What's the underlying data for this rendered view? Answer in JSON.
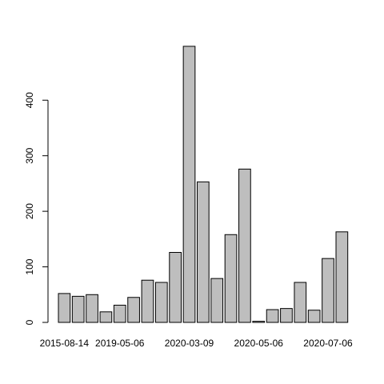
{
  "chart_data": {
    "type": "bar",
    "categories": [
      "2015-08-14",
      "",
      "",
      "",
      "2019-05-06",
      "",
      "",
      "",
      "",
      "2020-03-09",
      "",
      "",
      "",
      "",
      "2020-05-06",
      "",
      "",
      "",
      "",
      "2020-07-06",
      ""
    ],
    "values": [
      52,
      47,
      50,
      19,
      31,
      45,
      76,
      72,
      126,
      497,
      253,
      79,
      158,
      276,
      2,
      23,
      25,
      72,
      22,
      115,
      163
    ],
    "yticks": [
      0,
      100,
      200,
      300,
      400
    ],
    "ylim": [
      0,
      500
    ],
    "xlabel_indices": [
      0,
      4,
      9,
      14,
      19
    ],
    "title": "",
    "xlabel": "",
    "ylabel": "",
    "bar_color": "#bebebe",
    "bar_stroke": "#000000",
    "grid": false
  }
}
